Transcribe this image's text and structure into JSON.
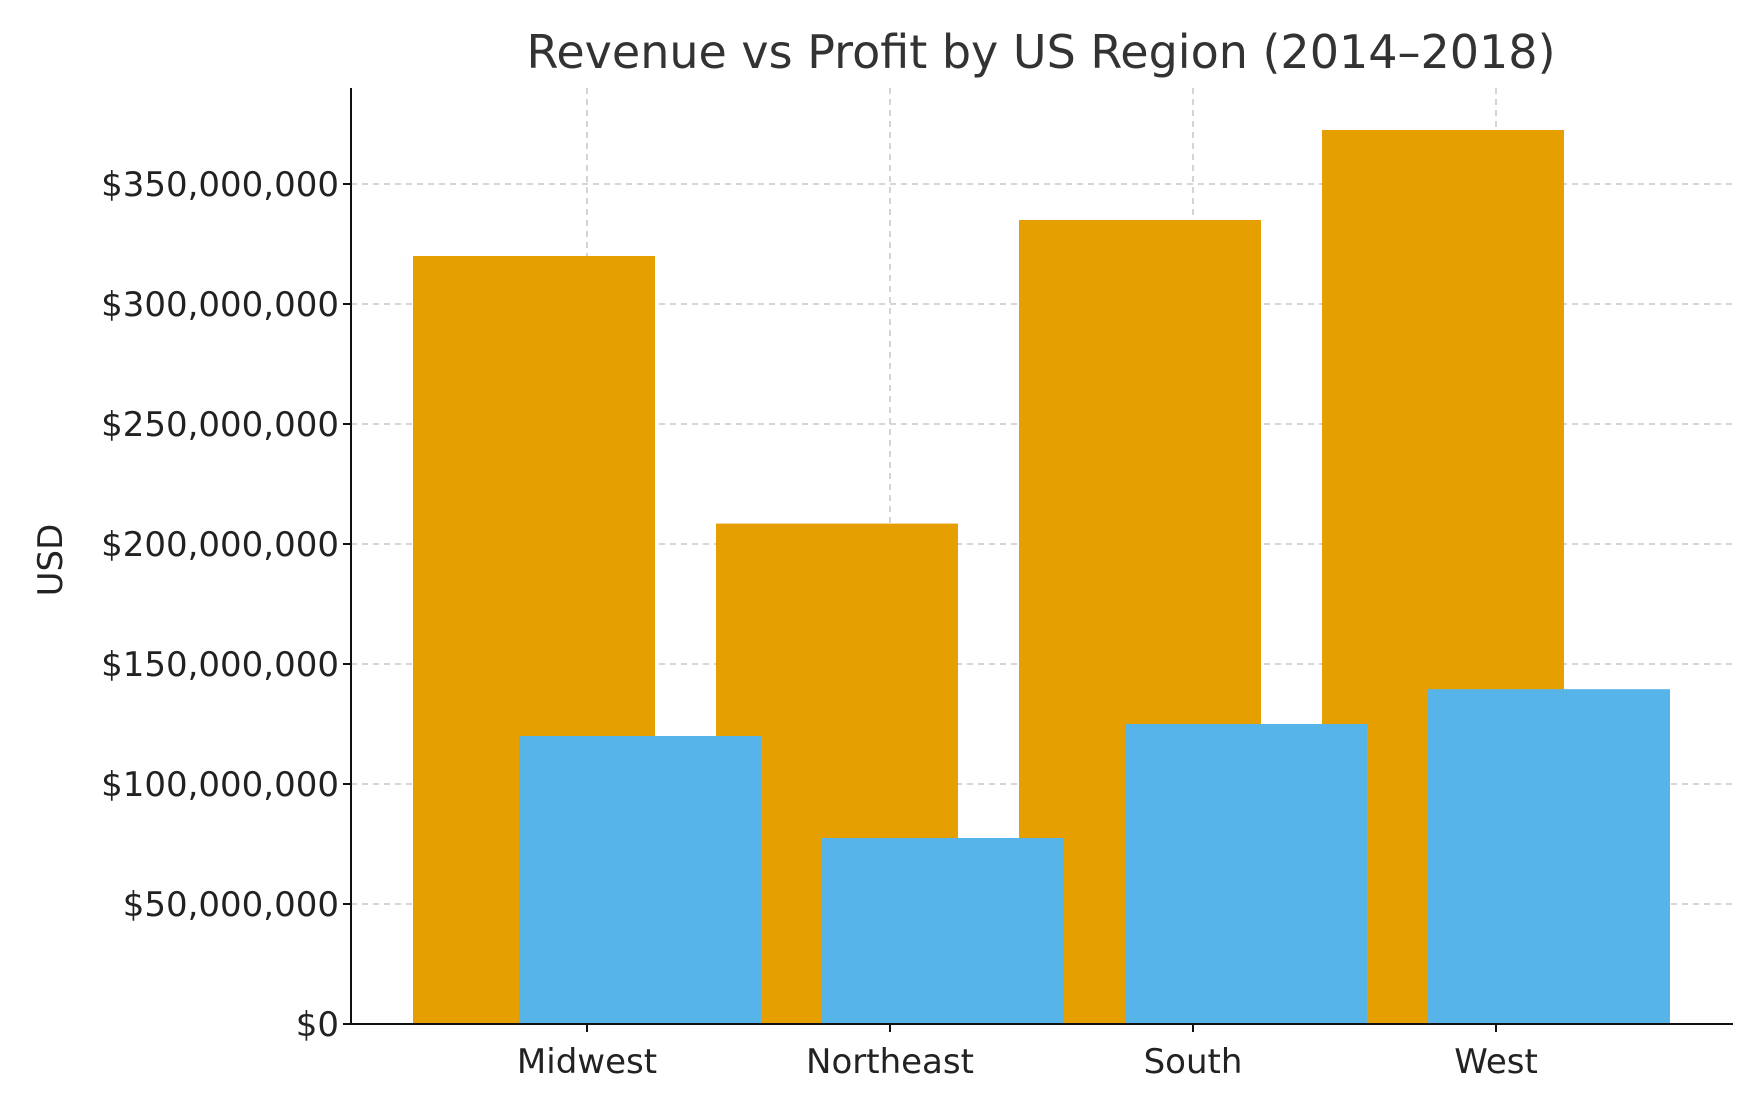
{
  "chart_data": {
    "type": "bar",
    "title": "Revenue vs Profit by US Region (2014–2018)",
    "xlabel": "",
    "ylabel": "USD",
    "categories": [
      "Midwest",
      "Northeast",
      "South",
      "West"
    ],
    "series": [
      {
        "values": [
          320000000,
          208500000,
          335000000,
          372500000
        ],
        "color": "#E69F00"
      },
      {
        "values": [
          120000000,
          77500000,
          125000000,
          139500000
        ],
        "color": "#56B4E9"
      }
    ],
    "ylim": [
      0,
      390000000
    ],
    "yticks": [
      0,
      50000000,
      100000000,
      150000000,
      200000000,
      250000000,
      300000000,
      350000000
    ],
    "ytick_labels": [
      "$0",
      "$50,000,000",
      "$100,000,000",
      "$150,000,000",
      "$200,000,000",
      "$250,000,000",
      "$300,000,000",
      "$350,000,000"
    ],
    "grid": true,
    "legend": false
  }
}
